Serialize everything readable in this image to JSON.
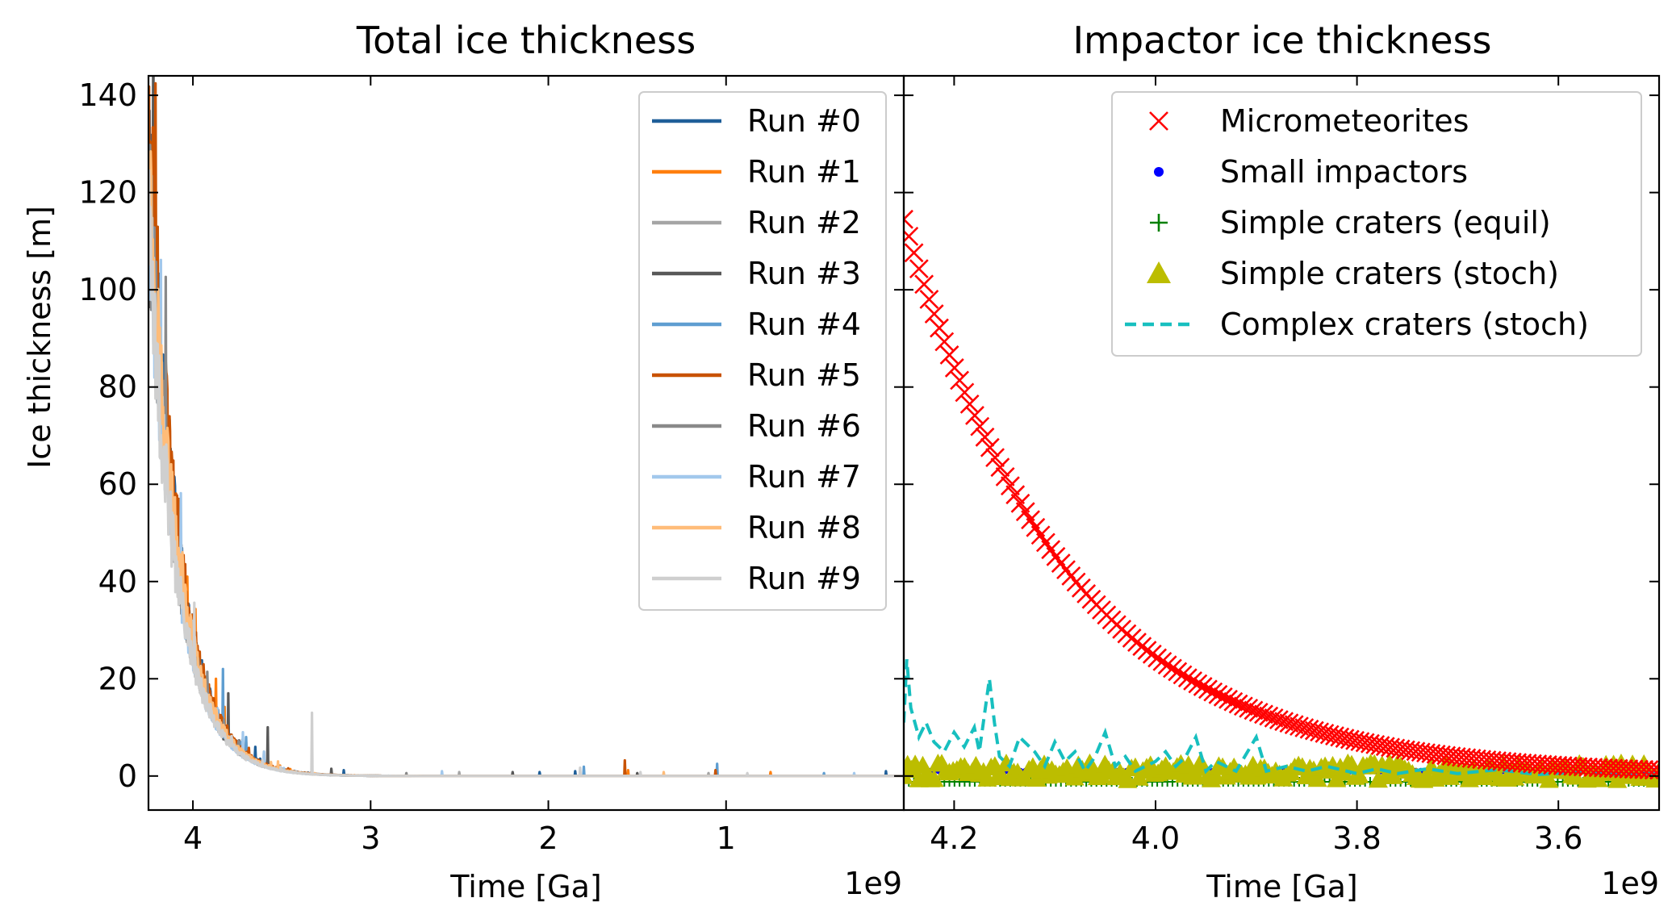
{
  "figure": {
    "left_title": "Total ice thickness",
    "right_title": "Impactor ice thickness",
    "ylabel": "Ice thickness [m]",
    "left_xlabel": "Time [Ga]",
    "right_xlabel": "Time [Ga]",
    "left_offset": "1e9",
    "right_offset": "1e9"
  },
  "chart_data": [
    {
      "type": "line",
      "title": "Total ice thickness",
      "xlabel": "Time [Ga]",
      "ylabel": "Ice thickness [m]",
      "x_offset_label": "1e9",
      "xlim": [
        4250000000.0,
        0.0
      ],
      "ylim": [
        -7,
        144
      ],
      "xticks": [
        4000000000.0,
        3000000000.0,
        2000000000.0,
        1000000000.0
      ],
      "xtick_labels": [
        "4",
        "3",
        "2",
        "1"
      ],
      "yticks": [
        0,
        20,
        40,
        60,
        80,
        100,
        120,
        140
      ],
      "ytick_labels": [
        "0",
        "20",
        "40",
        "60",
        "80",
        "100",
        "120",
        "140"
      ],
      "legend_position": "top-right",
      "decay": {
        "start": 4250000000.0,
        "base_start": 132,
        "tau": 162000000.0
      },
      "series": [
        {
          "name": "Run #0",
          "color": "#1f5f99",
          "seed": 11,
          "start_value": 134,
          "spikes": [
            [
              4100000000.0,
              30
            ],
            [
              3900000000.0,
              12
            ],
            [
              3650000000.0,
              6
            ],
            [
              3150000000.0,
              1.2
            ],
            [
              2050000000.0,
              0.8
            ],
            [
              1850000000.0,
              1.0
            ],
            [
              100000000.0,
              1.0
            ]
          ]
        },
        {
          "name": "Run #1",
          "color": "#ff7f0e",
          "seed": 23,
          "start_value": 128,
          "spikes": [
            [
              4030000000.0,
              41
            ],
            [
              3870000000.0,
              20
            ],
            [
              3700000000.0,
              7
            ],
            [
              1550000000.0,
              1.2
            ],
            [
              750000000.0,
              0.8
            ]
          ]
        },
        {
          "name": "Run #2",
          "color": "#a5a5a5",
          "seed": 37,
          "start_value": 120,
          "spikes": [
            [
              3950000000.0,
              12
            ],
            [
              3600000000.0,
              5
            ],
            [
              2500000000.0,
              0.8
            ],
            [
              1100000000.0,
              0.6
            ]
          ]
        },
        {
          "name": "Run #3",
          "color": "#585858",
          "seed": 41,
          "start_value": 118,
          "spikes": [
            [
              3800000000.0,
              17
            ],
            [
              3580000000.0,
              10
            ],
            [
              3220000000.0,
              1.5
            ],
            [
              2200000000.0,
              0.8
            ],
            [
              1500000000.0,
              0.6
            ]
          ]
        },
        {
          "name": "Run #4",
          "color": "#5f9ed1",
          "seed": 53,
          "start_value": 124,
          "spikes": [
            [
              3830000000.0,
              22
            ],
            [
              3700000000.0,
              8
            ],
            [
              1800000000.0,
              1.9
            ],
            [
              1050000000.0,
              2.5
            ],
            [
              450000000.0,
              0.6
            ]
          ]
        },
        {
          "name": "Run #5",
          "color": "#c85200",
          "seed": 67,
          "start_value": 137,
          "spikes": [
            [
              4150000000.0,
              83
            ],
            [
              4080000000.0,
              57
            ],
            [
              3950000000.0,
              15
            ],
            [
              1570000000.0,
              3.2
            ],
            [
              1060000000.0,
              1.2
            ]
          ]
        },
        {
          "name": "Run #6",
          "color": "#898989",
          "seed": 71,
          "start_value": 122,
          "spikes": [
            [
              3990000000.0,
              14
            ],
            [
              3750000000.0,
              6
            ],
            [
              2800000000.0,
              0.6
            ]
          ]
        },
        {
          "name": "Run #7",
          "color": "#a2c8ec",
          "seed": 83,
          "start_value": 116,
          "spikes": [
            [
              3720000000.0,
              9
            ],
            [
              3600000000.0,
              5
            ],
            [
              2600000000.0,
              1.0
            ],
            [
              280000000.0,
              0.6
            ]
          ]
        },
        {
          "name": "Run #8",
          "color": "#ffbc79",
          "seed": 97,
          "start_value": 126,
          "spikes": [
            [
              4060000000.0,
              46
            ],
            [
              3920000000.0,
              14
            ],
            [
              3520000000.0,
              3
            ],
            [
              1350000000.0,
              0.8
            ]
          ]
        },
        {
          "name": "Run #9",
          "color": "#cfcfcf",
          "seed": 101,
          "start_value": 112,
          "spikes": [
            [
              3330000000.0,
              13
            ],
            [
              1820000000.0,
              1.7
            ],
            [
              1480000000.0,
              0.8
            ],
            [
              880000000.0,
              0.6
            ]
          ]
        }
      ]
    },
    {
      "type": "scatter",
      "title": "Impactor ice thickness",
      "xlabel": "Time [Ga]",
      "x_offset_label": "1e9",
      "xlim": [
        4250000000.0,
        3500000000.0
      ],
      "ylim": [
        -7,
        144
      ],
      "xticks": [
        4200000000.0,
        4000000000.0,
        3800000000.0,
        3600000000.0
      ],
      "xtick_labels": [
        "4.2",
        "4.0",
        "3.8",
        "3.6"
      ],
      "yticks": [
        0,
        20,
        40,
        60,
        80,
        100,
        120,
        140
      ],
      "ytick_labels": [],
      "legend_position": "top-right",
      "series": [
        {
          "name": "Micrometeorites",
          "color": "#ff0000",
          "marker": "x",
          "x_start": 4250000000.0,
          "x_end": 3500000000.0,
          "count": 150,
          "y_start": 114.5,
          "y_end": 1.5,
          "tau": 162000000.0,
          "floor": 0.1
        },
        {
          "name": "Small impactors",
          "color": "#0000ff",
          "marker": "dot",
          "x_start": 4250000000.0,
          "x_end": 3500000000.0,
          "count": 150,
          "y_value": 1.0
        },
        {
          "name": "Simple craters (equil)",
          "color": "#008000",
          "marker": "plus",
          "x_start": 4250000000.0,
          "x_end": 3500000000.0,
          "count": 150,
          "y_value": -1.2
        },
        {
          "name": "Simple craters (stoch)",
          "color": "#bcbd00",
          "marker": "triangle",
          "x_start": 4250000000.0,
          "x_end": 3500000000.0,
          "count": 200,
          "y_range": [
            -1.0,
            2.5
          ]
        },
        {
          "name": "Complex craters (stoch)",
          "color": "#17bfbf",
          "marker": "dashed-line",
          "points": [
            [
              4250000000.0,
              11
            ],
            [
              4247000000.0,
              24
            ],
            [
              4243000000.0,
              14
            ],
            [
              4235000000.0,
              8
            ],
            [
              4228000000.0,
              11
            ],
            [
              4220000000.0,
              7
            ],
            [
              4210000000.0,
              5
            ],
            [
              4200000000.0,
              9
            ],
            [
              4190000000.0,
              6
            ],
            [
              4180000000.0,
              10
            ],
            [
              4175000000.0,
              5
            ],
            [
              4165000000.0,
              20
            ],
            [
              4160000000.0,
              11
            ],
            [
              4155000000.0,
              4
            ],
            [
              4145000000.0,
              2
            ],
            [
              4135000000.0,
              8
            ],
            [
              4120000000.0,
              5
            ],
            [
              4110000000.0,
              2
            ],
            [
              4100000000.0,
              7
            ],
            [
              4090000000.0,
              3
            ],
            [
              4080000000.0,
              5
            ],
            [
              4070000000.0,
              1
            ],
            [
              4060000000.0,
              4
            ],
            [
              4050000000.0,
              9
            ],
            [
              4040000000.0,
              2
            ],
            [
              4030000000.0,
              4
            ],
            [
              4020000000.0,
              1
            ],
            [
              4000000000.0,
              3
            ],
            [
              3990000000.0,
              5
            ],
            [
              3980000000.0,
              2
            ],
            [
              3970000000.0,
              4
            ],
            [
              3960000000.0,
              8
            ],
            [
              3950000000.0,
              1
            ],
            [
              3940000000.0,
              3
            ],
            [
              3920000000.0,
              1
            ],
            [
              3900000000.0,
              8
            ],
            [
              3890000000.0,
              1
            ],
            [
              3870000000.0,
              2
            ],
            [
              3850000000.0,
              1
            ],
            [
              3830000000.0,
              2
            ],
            [
              3800000000.0,
              0.5
            ],
            [
              3780000000.0,
              1.5
            ],
            [
              3760000000.0,
              0.5
            ],
            [
              3730000000.0,
              1.5
            ],
            [
              3700000000.0,
              0.5
            ],
            [
              3660000000.0,
              1.3
            ],
            [
              3620000000.0,
              0.3
            ],
            [
              3580000000.0,
              0.8
            ],
            [
              3540000000.0,
              0.3
            ],
            [
              3500000000.0,
              0.6
            ]
          ]
        }
      ]
    }
  ]
}
